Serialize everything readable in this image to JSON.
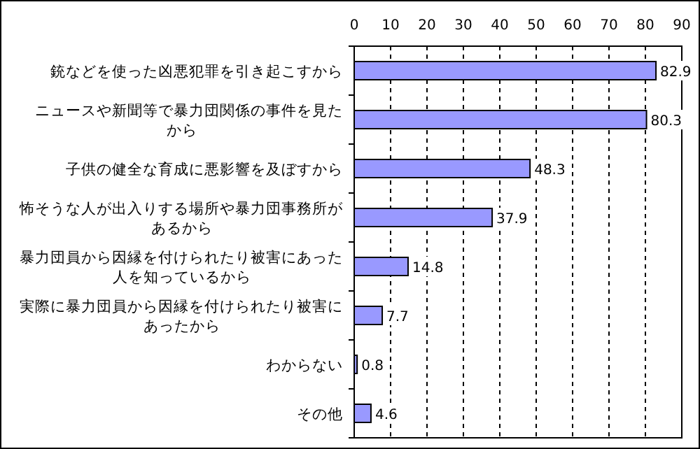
{
  "chart_data": {
    "type": "bar",
    "orientation": "horizontal",
    "categories": [
      "銃などを使った凶悪犯罪を引き起こすから",
      "ニュースや新聞等で暴力団関係の事件を見たから",
      "子供の健全な育成に悪影響を及ぼすから",
      "怖そうな人が出入りする場所や暴力団事務所があるから",
      "暴力団員から因縁を付けられたり被害にあった人を知っているから",
      "実際に暴力団員から因縁を付けられたり被害にあったから",
      "わからない",
      "その他"
    ],
    "values": [
      82.9,
      80.3,
      48.3,
      37.9,
      14.8,
      7.7,
      0.8,
      4.6
    ],
    "color": "#9999ff",
    "xlim": [
      0,
      90
    ],
    "xticks": [
      0,
      10,
      20,
      30,
      40,
      50,
      60,
      70,
      80,
      90
    ],
    "grid": "x",
    "data_labels": true
  }
}
